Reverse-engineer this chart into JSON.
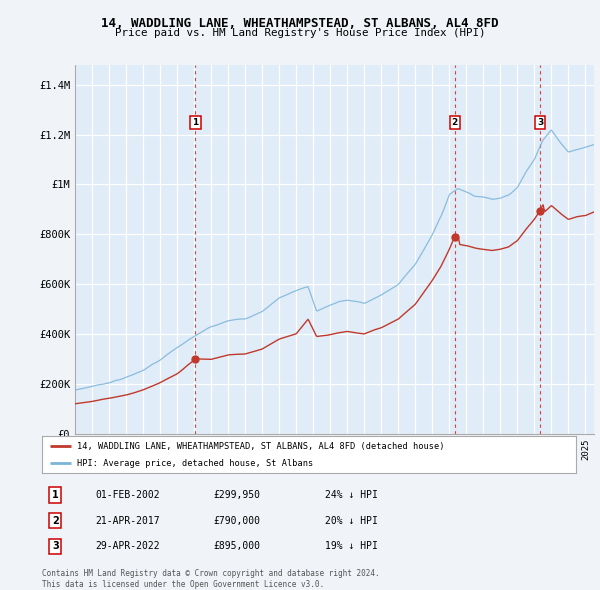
{
  "title": "14, WADDLING LANE, WHEATHAMPSTEAD, ST ALBANS, AL4 8FD",
  "subtitle": "Price paid vs. HM Land Registry's House Price Index (HPI)",
  "ylabel_ticks": [
    "£0",
    "£200K",
    "£400K",
    "£600K",
    "£800K",
    "£1M",
    "£1.2M",
    "£1.4M"
  ],
  "ytick_values": [
    0,
    200000,
    400000,
    600000,
    800000,
    1000000,
    1200000,
    1400000
  ],
  "ylim": [
    0,
    1480000
  ],
  "xlim_start": 1995.0,
  "xlim_end": 2025.5,
  "hpi_color": "#7ab4d8",
  "price_color": "#c0392b",
  "dashed_line_color": "#d73027",
  "bg_color": "#f0f4f8",
  "plot_bg": "#e0ecf8",
  "grid_color": "#c8d8e8",
  "transactions": [
    {
      "num": 1,
      "date": "01-FEB-2002",
      "price": 299950,
      "pct": "24%",
      "year": 2002.08
    },
    {
      "num": 2,
      "date": "21-APR-2017",
      "price": 790000,
      "pct": "20%",
      "year": 2017.31
    },
    {
      "num": 3,
      "date": "29-APR-2022",
      "price": 895000,
      "pct": "19%",
      "year": 2022.33
    }
  ],
  "legend_property_label": "14, WADDLING LANE, WHEATHAMPSTEAD, ST ALBANS, AL4 8FD (detached house)",
  "legend_hpi_label": "HPI: Average price, detached house, St Albans",
  "footer": "Contains HM Land Registry data © Crown copyright and database right 2024.\nThis data is licensed under the Open Government Licence v3.0."
}
